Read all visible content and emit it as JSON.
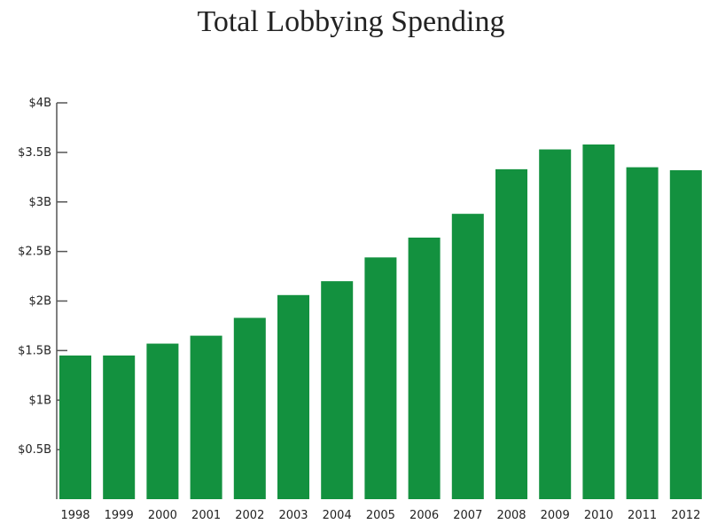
{
  "chart_data": {
    "type": "bar",
    "title": "Total Lobbying Spending",
    "xlabel": "",
    "ylabel": "",
    "categories": [
      "1998",
      "1999",
      "2000",
      "2001",
      "2002",
      "2003",
      "2004",
      "2005",
      "2006",
      "2007",
      "2008",
      "2009",
      "2010",
      "2011",
      "2012"
    ],
    "values": [
      1.45,
      1.45,
      1.57,
      1.65,
      1.83,
      2.06,
      2.2,
      2.44,
      2.64,
      2.88,
      3.33,
      3.53,
      3.58,
      3.35,
      3.32
    ],
    "value_unit": "billion USD",
    "ylim": [
      0,
      4
    ],
    "yticks": [
      {
        "value": 0.5,
        "label": "$0.5B"
      },
      {
        "value": 1,
        "label": "$1B"
      },
      {
        "value": 1.5,
        "label": "$1.5B"
      },
      {
        "value": 2,
        "label": "$2B"
      },
      {
        "value": 2.5,
        "label": "$2.5B"
      },
      {
        "value": 3,
        "label": "$3B"
      },
      {
        "value": 3.5,
        "label": "$3.5B"
      },
      {
        "value": 4,
        "label": "$4B"
      }
    ],
    "grid": false,
    "legend": "none",
    "bar_color": "#13913f",
    "axis_color": "#555555"
  }
}
